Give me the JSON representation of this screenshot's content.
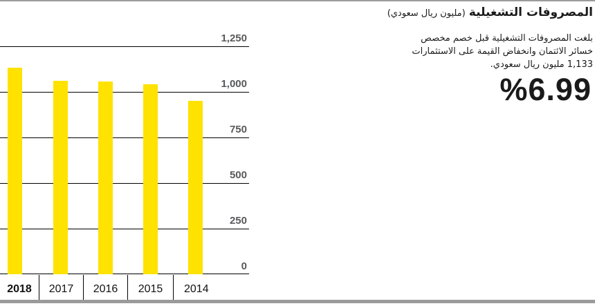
{
  "header": {
    "title": "المصروفات التشغيلية",
    "unit": "(مليون ريال سعودي)"
  },
  "summary": {
    "lines": [
      "بلغت المصروفات التشغيلية قبل خصم مخصص",
      "خسائر الائتمان وانخفاض القيمة على الاستثمارات",
      "1,133 مليون ريال سعودي."
    ],
    "highlight_value": "%6.99"
  },
  "chart_data": {
    "type": "bar",
    "title": "المصروفات التشغيلية (مليون ريال سعودي)",
    "categories": [
      "2018",
      "2017",
      "2016",
      "2015",
      "2014"
    ],
    "values": [
      1133,
      1059,
      1055,
      1040,
      950
    ],
    "highlighted_category": "2018",
    "xlabel": "",
    "ylabel": "",
    "ylim": [
      0,
      1250
    ],
    "yticks": [
      0,
      250,
      500,
      750,
      1000,
      1250
    ],
    "ytick_labels": [
      "0",
      "250",
      "500",
      "750",
      "1,000",
      "1,250"
    ],
    "grid": true,
    "legend": "none",
    "bar_color": "#ffe200",
    "tick_label_color": "#58595b",
    "gridline_color": "#000000",
    "rule_color": "#9b9b9b"
  }
}
